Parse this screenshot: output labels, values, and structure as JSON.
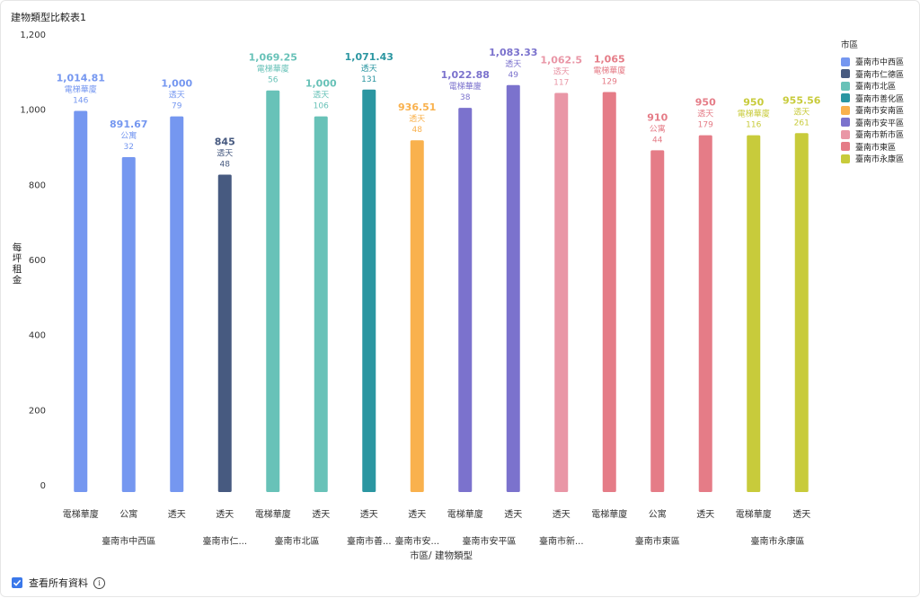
{
  "title": "建物類型比較表1",
  "footer": {
    "show_all_label": "查看所有資料"
  },
  "legend": {
    "title": "市區",
    "items": [
      {
        "label": "臺南市中西區",
        "color": "#7597f0"
      },
      {
        "label": "臺南市仁德區",
        "color": "#475a80"
      },
      {
        "label": "臺南市北區",
        "color": "#68c2b8"
      },
      {
        "label": "臺南市善化區",
        "color": "#2b96a1"
      },
      {
        "label": "臺南市安南區",
        "color": "#f9b14d"
      },
      {
        "label": "臺南市安平區",
        "color": "#7b72cd"
      },
      {
        "label": "臺南市新市區",
        "color": "#e996a6"
      },
      {
        "label": "臺南市東區",
        "color": "#e57c87"
      },
      {
        "label": "臺南市永康區",
        "color": "#c8cb3b"
      }
    ]
  },
  "chart_data": {
    "type": "bar",
    "title": "建物類型比較表1",
    "xlabel": "市區/ 建物類型",
    "ylabel": "每坪租金",
    "ylim": [
      0,
      1200
    ],
    "yticks": [
      "0",
      "200",
      "400",
      "600",
      "800",
      "1,000",
      "1,200"
    ],
    "grid": false,
    "legend_position": "right",
    "groups": [
      {
        "label": "臺南市中西區",
        "series": "臺南市中西區",
        "color": "#7597f0",
        "bars": [
          {
            "category": "電梯華廈",
            "value": 1014.81,
            "value_label": "1,014.81",
            "count": "146"
          },
          {
            "category": "公寓",
            "value": 891.67,
            "value_label": "891.67",
            "count": "32"
          },
          {
            "category": "透天",
            "value": 1000,
            "value_label": "1,000",
            "count": "79"
          }
        ]
      },
      {
        "label": "臺南市仁...",
        "series": "臺南市仁德區",
        "color": "#475a80",
        "bars": [
          {
            "category": "透天",
            "value": 845,
            "value_label": "845",
            "count": "48"
          }
        ]
      },
      {
        "label": "臺南市北區",
        "series": "臺南市北區",
        "color": "#68c2b8",
        "bars": [
          {
            "category": "電梯華廈",
            "value": 1069.25,
            "value_label": "1,069.25",
            "count": "56"
          },
          {
            "category": "透天",
            "value": 1000,
            "value_label": "1,000",
            "count": "106"
          }
        ]
      },
      {
        "label": "臺南市善...",
        "series": "臺南市善化區",
        "color": "#2b96a1",
        "bars": [
          {
            "category": "透天",
            "value": 1071.43,
            "value_label": "1,071.43",
            "count": "131"
          }
        ]
      },
      {
        "label": "臺南市安...",
        "series": "臺南市安南區",
        "color": "#f9b14d",
        "bars": [
          {
            "category": "透天",
            "value": 936.51,
            "value_label": "936.51",
            "count": "48"
          }
        ]
      },
      {
        "label": "臺南市安平區",
        "series": "臺南市安平區",
        "color": "#7b72cd",
        "bars": [
          {
            "category": "電梯華廈",
            "value": 1022.88,
            "value_label": "1,022.88",
            "count": "38"
          },
          {
            "category": "透天",
            "value": 1083.33,
            "value_label": "1,083.33",
            "count": "49"
          }
        ]
      },
      {
        "label": "臺南市新...",
        "series": "臺南市新市區",
        "color": "#e996a6",
        "bars": [
          {
            "category": "透天",
            "value": 1062.5,
            "value_label": "1,062.5",
            "count": "117"
          }
        ]
      },
      {
        "label": "臺南市東區",
        "series": "臺南市東區",
        "color": "#e57c87",
        "bars": [
          {
            "category": "電梯華廈",
            "value": 1065,
            "value_label": "1,065",
            "count": "129"
          },
          {
            "category": "公寓",
            "value": 910,
            "value_label": "910",
            "count": "44"
          },
          {
            "category": "透天",
            "value": 950,
            "value_label": "950",
            "count": "179"
          }
        ]
      },
      {
        "label": "臺南市永康區",
        "series": "臺南市永康區",
        "color": "#c8cb3b",
        "bars": [
          {
            "category": "電梯華廈",
            "value": 950,
            "value_label": "950",
            "count": "116"
          },
          {
            "category": "透天",
            "value": 955.56,
            "value_label": "955.56",
            "count": "261"
          }
        ]
      }
    ]
  }
}
